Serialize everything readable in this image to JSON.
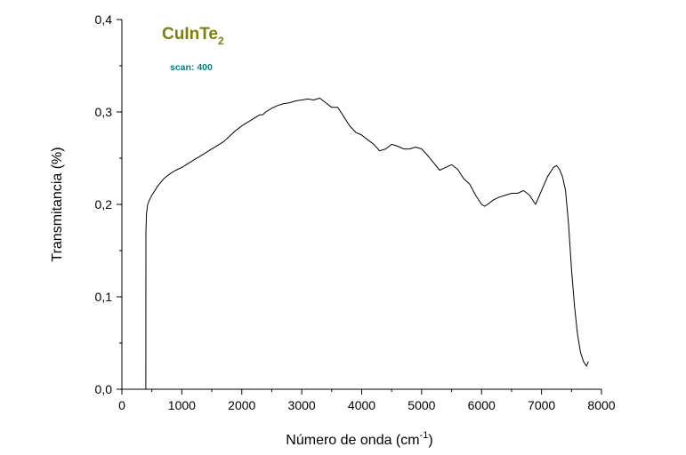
{
  "chart_data": {
    "type": "line",
    "title": "",
    "xlabel": "Número de onda (cm",
    "xlabel_sup": "-1",
    "xlabel_close": ")",
    "ylabel": "Transmitancia (%)",
    "xlim": [
      0,
      8000
    ],
    "ylim": [
      0.0,
      0.4
    ],
    "x_ticks": [
      0,
      1000,
      2000,
      3000,
      4000,
      5000,
      6000,
      7000,
      8000
    ],
    "x_tick_labels": [
      "0",
      "1000",
      "2000",
      "3000",
      "4000",
      "5000",
      "6000",
      "7000",
      "8000"
    ],
    "y_ticks": [
      0.0,
      0.1,
      0.2,
      0.3,
      0.4
    ],
    "y_tick_labels": [
      "0,0",
      "0,1",
      "0,2",
      "0,3",
      "0,4"
    ],
    "grid": false,
    "legend": "none",
    "annotations": {
      "compound_main": "CuInTe",
      "compound_sub": "2",
      "scan": "scan: 400"
    },
    "colors": {
      "line": "#000000",
      "compound": "#808000",
      "scan": "#008080"
    },
    "series": [
      {
        "x": [
          400,
          401,
          410,
          430,
          460,
          500,
          600,
          700,
          800,
          900,
          1000,
          1100,
          1200,
          1300,
          1400,
          1500,
          1600,
          1700,
          1800,
          1900,
          2000,
          2100,
          2200,
          2300,
          2350,
          2400,
          2500,
          2600,
          2700,
          2800,
          2900,
          3000,
          3100,
          3200,
          3300,
          3400,
          3500,
          3600,
          3700,
          3800,
          3900,
          4000,
          4100,
          4200,
          4300,
          4400,
          4500,
          4600,
          4700,
          4800,
          4900,
          5000,
          5100,
          5200,
          5300,
          5400,
          5500,
          5600,
          5700,
          5800,
          5900,
          6000,
          6050,
          6100,
          6200,
          6300,
          6400,
          6500,
          6600,
          6700,
          6800,
          6900,
          7000,
          7100,
          7200,
          7250,
          7300,
          7350,
          7400,
          7450,
          7500,
          7550,
          7600,
          7650,
          7700,
          7750,
          7780
        ],
        "y": [
          0.0,
          0.17,
          0.19,
          0.2,
          0.205,
          0.21,
          0.22,
          0.228,
          0.233,
          0.237,
          0.24,
          0.244,
          0.248,
          0.252,
          0.256,
          0.26,
          0.264,
          0.268,
          0.274,
          0.28,
          0.285,
          0.289,
          0.293,
          0.297,
          0.297,
          0.3,
          0.304,
          0.307,
          0.309,
          0.31,
          0.312,
          0.313,
          0.314,
          0.313,
          0.315,
          0.31,
          0.305,
          0.305,
          0.295,
          0.285,
          0.278,
          0.275,
          0.27,
          0.265,
          0.258,
          0.26,
          0.265,
          0.263,
          0.26,
          0.26,
          0.262,
          0.26,
          0.253,
          0.245,
          0.237,
          0.24,
          0.243,
          0.238,
          0.228,
          0.222,
          0.21,
          0.2,
          0.198,
          0.2,
          0.205,
          0.208,
          0.21,
          0.212,
          0.212,
          0.215,
          0.21,
          0.2,
          0.215,
          0.23,
          0.24,
          0.242,
          0.238,
          0.23,
          0.215,
          0.18,
          0.13,
          0.09,
          0.06,
          0.04,
          0.03,
          0.025,
          0.03
        ]
      }
    ]
  }
}
